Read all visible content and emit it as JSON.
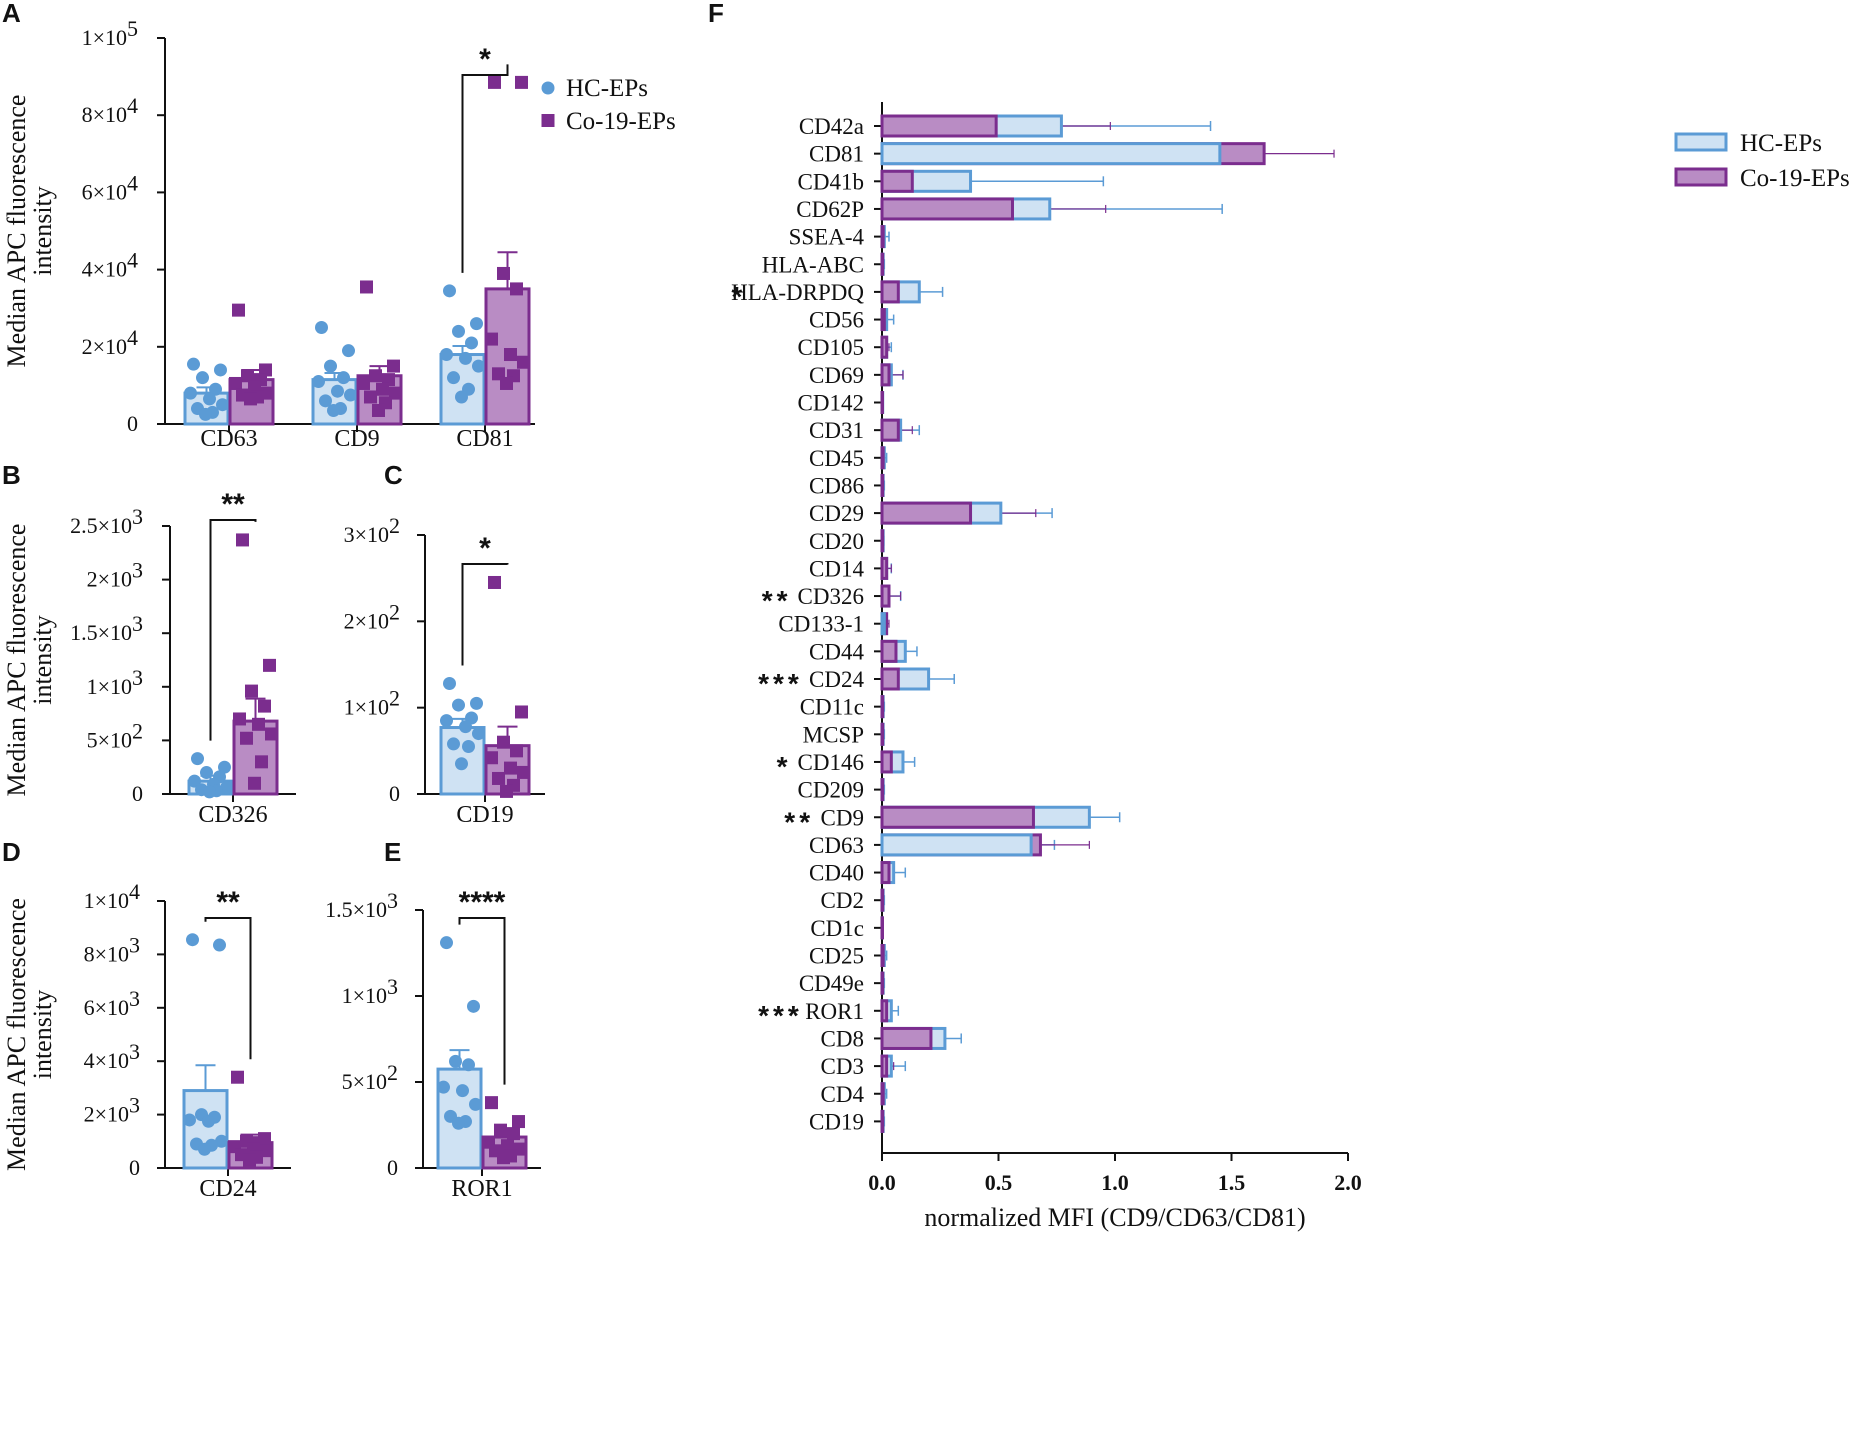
{
  "colors": {
    "hc": "#5b9bd5",
    "hc_fill": "#cfe2f3",
    "co": "#7b2d8e",
    "co_fill": "#b98cc4",
    "axis": "#111111"
  },
  "chart_data": [
    {
      "panel": "A",
      "type": "bar",
      "ylabel": [
        "Median APC fluorescence",
        "intensity"
      ],
      "xlabel": "",
      "ylim": [
        0,
        100000
      ],
      "yticks": [
        {
          "v": 0,
          "m": "0",
          "e": ""
        },
        {
          "v": 20000,
          "m": "2×10",
          "e": "4"
        },
        {
          "v": 40000,
          "m": "4×10",
          "e": "4"
        },
        {
          "v": 60000,
          "m": "6×10",
          "e": "4"
        },
        {
          "v": 80000,
          "m": "8×10",
          "e": "4"
        },
        {
          "v": 100000,
          "m": "1×10",
          "e": "5"
        }
      ],
      "categories": [
        "CD63",
        "CD9",
        "CD81"
      ],
      "legend": [
        "HC-EPs",
        "Co-19-EPs"
      ],
      "series": [
        {
          "name": "HC-EPs",
          "values": [
            8000,
            11500,
            18000
          ],
          "sem": [
            1500,
            1700,
            2200
          ],
          "points": [
            [
              15500,
              14000,
              12000,
              9000,
              8000,
              6500,
              5000,
              4000,
              3000,
              2500
            ],
            [
              25000,
              19000,
              15000,
              12000,
              11000,
              8500,
              7500,
              6000,
              4000,
              3500
            ],
            [
              34500,
              26000,
              24000,
              21000,
              18000,
              17000,
              15000,
              12000,
              9000,
              7000
            ]
          ]
        },
        {
          "name": "Co-19-EPs",
          "values": [
            11500,
            12500,
            35000
          ],
          "sem": [
            2500,
            2500,
            9500
          ],
          "points": [
            [
              29500,
              14000,
              12500,
              11500,
              10500,
              9500,
              8000,
              7500,
              7000,
              6500
            ],
            [
              35500,
              15000,
              12500,
              11500,
              10500,
              9000,
              8000,
              7000,
              5500,
              3500
            ],
            [
              88500,
              88500,
              39000,
              35000,
              22000,
              18000,
              16000,
              13000,
              12500,
              10500
            ]
          ]
        }
      ],
      "significance": [
        {
          "category": "CD81",
          "label": "*"
        }
      ]
    },
    {
      "panel": "B",
      "type": "bar",
      "ylabel": [
        "Median APC fluorescence",
        "intensity"
      ],
      "ylim": [
        0,
        2500
      ],
      "yticks": [
        {
          "v": 0,
          "m": "0",
          "e": ""
        },
        {
          "v": 500,
          "m": "5×10",
          "e": "2"
        },
        {
          "v": 1000,
          "m": "1×10",
          "e": "3"
        },
        {
          "v": 1500,
          "m": "1.5×10",
          "e": "3"
        },
        {
          "v": 2000,
          "m": "2×10",
          "e": "3"
        },
        {
          "v": 2500,
          "m": "2.5×10",
          "e": "3"
        }
      ],
      "categories": [
        "CD326"
      ],
      "series": [
        {
          "name": "HC-EPs",
          "values": [
            120
          ],
          "sem": [
            50
          ],
          "points": [
            [
              330,
              250,
              200,
              160,
              120,
              90,
              60,
              40,
              30,
              20
            ]
          ]
        },
        {
          "name": "Co-19-EPs",
          "values": [
            680
          ],
          "sem": [
            210
          ],
          "points": [
            [
              2370,
              1200,
              960,
              820,
              700,
              650,
              560,
              520,
              300,
              100
            ]
          ]
        }
      ],
      "significance": [
        {
          "category": "CD326",
          "label": "**"
        }
      ]
    },
    {
      "panel": "C",
      "type": "bar",
      "ylabel": [],
      "ylim": [
        0,
        300
      ],
      "yticks": [
        {
          "v": 0,
          "m": "0",
          "e": ""
        },
        {
          "v": 100,
          "m": "1×10",
          "e": "2"
        },
        {
          "v": 200,
          "m": "2×10",
          "e": "2"
        },
        {
          "v": 300,
          "m": "3×10",
          "e": "2"
        }
      ],
      "categories": [
        "CD19"
      ],
      "series": [
        {
          "name": "HC-EPs",
          "values": [
            77
          ],
          "sem": [
            10
          ],
          "points": [
            [
              128,
              105,
              103,
              88,
              85,
              78,
              70,
              58,
              55,
              35
            ]
          ]
        },
        {
          "name": "Co-19-EPs",
          "values": [
            56
          ],
          "sem": [
            22
          ],
          "points": [
            [
              245,
              95,
              60,
              50,
              42,
              30,
              25,
              18,
              10,
              3
            ]
          ]
        }
      ],
      "significance": [
        {
          "category": "CD19",
          "label": "*"
        }
      ]
    },
    {
      "panel": "D",
      "type": "bar",
      "ylabel": [
        "Median APC fluorescence",
        "intensity"
      ],
      "ylim": [
        0,
        10000
      ],
      "yticks": [
        {
          "v": 0,
          "m": "0",
          "e": ""
        },
        {
          "v": 2000,
          "m": "2×10",
          "e": "3"
        },
        {
          "v": 4000,
          "m": "4×10",
          "e": "3"
        },
        {
          "v": 6000,
          "m": "6×10",
          "e": "3"
        },
        {
          "v": 8000,
          "m": "8×10",
          "e": "3"
        },
        {
          "v": 10000,
          "m": "1×10",
          "e": "4"
        }
      ],
      "categories": [
        "CD24"
      ],
      "series": [
        {
          "name": "HC-EPs",
          "values": [
            2900
          ],
          "sem": [
            950
          ],
          "points": [
            [
              8550,
              8350,
              2000,
              1900,
              1800,
              1750,
              1000,
              900,
              850,
              700
            ]
          ]
        },
        {
          "name": "Co-19-EPs",
          "values": [
            950
          ],
          "sem": [
            300
          ],
          "points": [
            [
              3400,
              1100,
              1000,
              950,
              800,
              700,
              650,
              500,
              400,
              300
            ]
          ]
        }
      ],
      "significance": [
        {
          "category": "CD24",
          "label": "**"
        }
      ]
    },
    {
      "panel": "E",
      "type": "bar",
      "ylabel": [],
      "ylim": [
        0,
        1500
      ],
      "yticks": [
        {
          "v": 0,
          "m": "0",
          "e": ""
        },
        {
          "v": 500,
          "m": "5×10",
          "e": "2"
        },
        {
          "v": 1000,
          "m": "1×10",
          "e": "3"
        },
        {
          "v": 1500,
          "m": "1.5×10",
          "e": "3"
        }
      ],
      "categories": [
        "ROR1"
      ],
      "series": [
        {
          "name": "HC-EPs",
          "values": [
            575
          ],
          "sem": [
            110
          ],
          "points": [
            [
              1310,
              940,
              620,
              600,
              470,
              450,
              370,
              300,
              270,
              260
            ]
          ]
        },
        {
          "name": "Co-19-EPs",
          "values": [
            180
          ],
          "sem": [
            35
          ],
          "points": [
            [
              380,
              270,
              220,
              200,
              150,
              130,
              110,
              100,
              70,
              60
            ]
          ]
        }
      ],
      "significance": [
        {
          "category": "ROR1",
          "label": "****"
        }
      ]
    },
    {
      "panel": "F",
      "type": "bar",
      "orientation": "horizontal",
      "xlabel": "normalized MFI (CD9/CD63/CD81)",
      "xlim": [
        0,
        2.0
      ],
      "xticks": [
        "0.0",
        "0.5",
        "1.0",
        "1.5",
        "2.0"
      ],
      "legend": [
        "HC-EPs",
        "Co-19-EPs"
      ],
      "categories": [
        "CD42a",
        "CD81",
        "CD41b",
        "CD62P",
        "SSEA-4",
        "HLA-ABC",
        "HLA-DRPDQ",
        "CD56",
        "CD105",
        "CD69",
        "CD142",
        "CD31",
        "CD45",
        "CD86",
        "CD29",
        "CD20",
        "CD14",
        "CD326",
        "CD133-1",
        "CD44",
        "CD24",
        "CD11c",
        "MCSP",
        "CD146",
        "CD209",
        "CD9",
        "CD63",
        "CD40",
        "CD2",
        "CD1c",
        "CD25",
        "CD49e",
        "ROR1",
        "CD8",
        "CD3",
        "CD4",
        "CD19"
      ],
      "significance": [
        "",
        "",
        "",
        "",
        "",
        "",
        "*",
        "",
        "",
        "",
        "",
        "",
        "",
        "",
        "",
        "",
        "",
        "**",
        "",
        "",
        "***",
        "",
        "",
        "*",
        "",
        "**",
        "",
        "",
        "",
        "",
        "",
        "",
        "***",
        "",
        "",
        "",
        ""
      ],
      "series": [
        {
          "name": "HC-EPs",
          "values": [
            0.77,
            1.45,
            0.38,
            0.72,
            0.01,
            0.005,
            0.16,
            0.02,
            0.02,
            0.04,
            0.003,
            0.08,
            0.01,
            0.005,
            0.51,
            0.005,
            0.02,
            0.03,
            0.01,
            0.1,
            0.2,
            0.005,
            0.005,
            0.09,
            0.005,
            0.89,
            0.64,
            0.05,
            0.005,
            0.002,
            0.01,
            0.005,
            0.04,
            0.27,
            0.04,
            0.01,
            0.005
          ],
          "err": [
            0.64,
            0.08,
            0.57,
            0.74,
            0.02,
            0.005,
            0.1,
            0.03,
            0.02,
            0.05,
            0.002,
            0.08,
            0.01,
            0.005,
            0.22,
            0.003,
            0.02,
            0.05,
            0.01,
            0.05,
            0.11,
            0.005,
            0.005,
            0.05,
            0.005,
            0.13,
            0.1,
            0.05,
            0.005,
            0.002,
            0.01,
            0.005,
            0.03,
            0.07,
            0.06,
            0.01,
            0.005
          ]
        },
        {
          "name": "Co-19-EPs",
          "values": [
            0.49,
            1.64,
            0.13,
            0.56,
            0.005,
            0.003,
            0.07,
            0.01,
            0.02,
            0.03,
            0.002,
            0.07,
            0.005,
            0.003,
            0.38,
            0.003,
            0.02,
            0.03,
            0.02,
            0.06,
            0.07,
            0.003,
            0.003,
            0.04,
            0.003,
            0.65,
            0.68,
            0.03,
            0.003,
            0.001,
            0.005,
            0.003,
            0.02,
            0.21,
            0.02,
            0.005,
            0.003
          ],
          "err": [
            0.49,
            0.3,
            0.16,
            0.4,
            0.005,
            0.003,
            0.04,
            0.01,
            0.01,
            0.06,
            0.002,
            0.06,
            0.005,
            0.003,
            0.28,
            0.003,
            0.02,
            0.05,
            0.01,
            0.04,
            0.1,
            0.003,
            0.003,
            0.03,
            0.003,
            0.18,
            0.21,
            0.02,
            0.003,
            0.001,
            0.005,
            0.003,
            0.02,
            0.06,
            0.03,
            0.005,
            0.003
          ]
        }
      ]
    }
  ]
}
